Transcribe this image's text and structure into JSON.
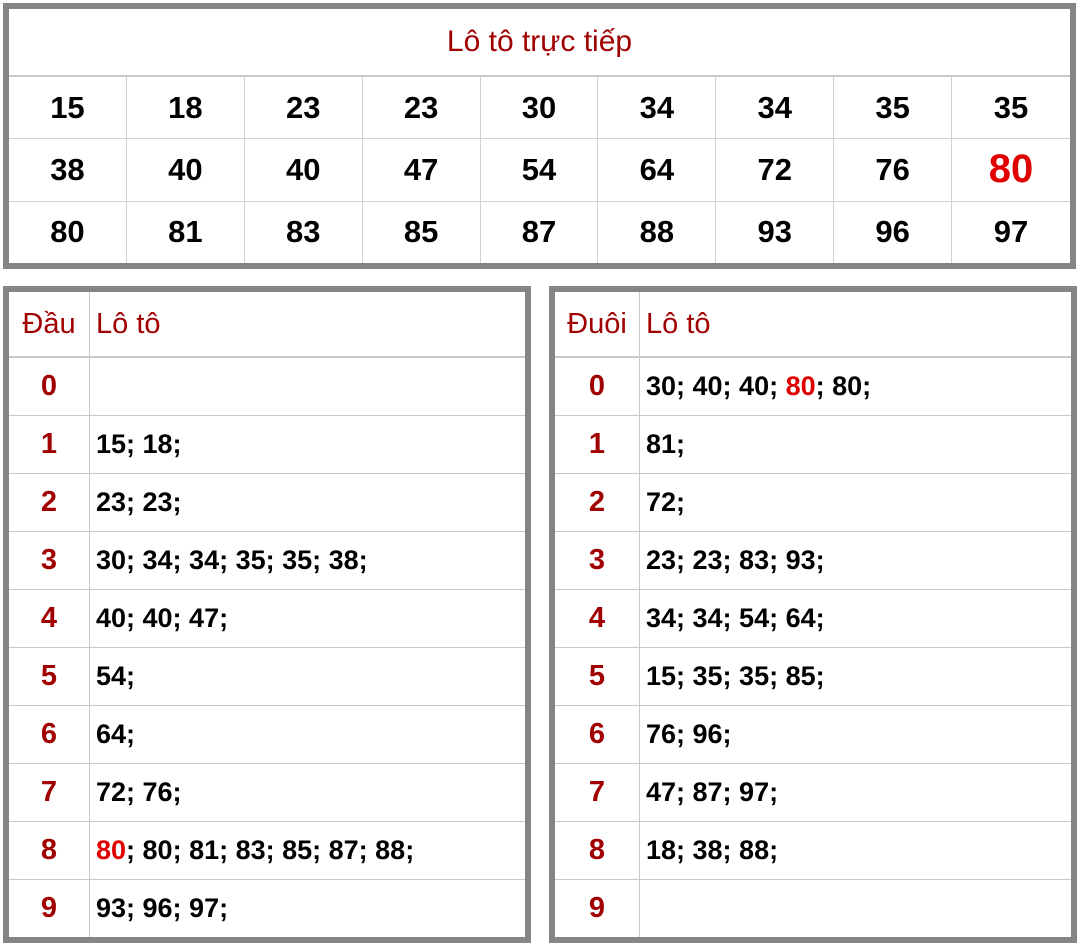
{
  "live": {
    "title": "Lô tô trực tiếp",
    "rows": [
      [
        "15",
        "18",
        "23",
        "23",
        "30",
        "34",
        "34",
        "35",
        "35"
      ],
      [
        "38",
        "40",
        "40",
        "47",
        "54",
        "64",
        "72",
        "76",
        "80"
      ],
      [
        "80",
        "81",
        "83",
        "85",
        "87",
        "88",
        "93",
        "96",
        "97"
      ]
    ],
    "highlight": {
      "row": 1,
      "col": 8
    }
  },
  "head_table": {
    "header": [
      "Đầu",
      "Lô tô"
    ],
    "rows": [
      {
        "key": "0",
        "parts": []
      },
      {
        "key": "1",
        "parts": [
          {
            "text": "15; 18;"
          }
        ]
      },
      {
        "key": "2",
        "parts": [
          {
            "text": "23; 23;"
          }
        ]
      },
      {
        "key": "3",
        "parts": [
          {
            "text": "30; 34; 34; 35; 35; 38;"
          }
        ]
      },
      {
        "key": "4",
        "parts": [
          {
            "text": "40; 40; 47;"
          }
        ]
      },
      {
        "key": "5",
        "parts": [
          {
            "text": "54;"
          }
        ]
      },
      {
        "key": "6",
        "parts": [
          {
            "text": "64;"
          }
        ]
      },
      {
        "key": "7",
        "parts": [
          {
            "text": "72; 76;"
          }
        ]
      },
      {
        "key": "8",
        "parts": [
          {
            "text": "80",
            "hot": true
          },
          {
            "text": "; 80; 81; 83; 85; 87; 88;"
          }
        ]
      },
      {
        "key": "9",
        "parts": [
          {
            "text": "93; 96; 97;"
          }
        ]
      }
    ]
  },
  "tail_table": {
    "header": [
      "Đuôi",
      "Lô tô"
    ],
    "rows": [
      {
        "key": "0",
        "parts": [
          {
            "text": "30; 40; 40; "
          },
          {
            "text": "80",
            "hot": true
          },
          {
            "text": "; 80;"
          }
        ]
      },
      {
        "key": "1",
        "parts": [
          {
            "text": "81;"
          }
        ]
      },
      {
        "key": "2",
        "parts": [
          {
            "text": "72;"
          }
        ]
      },
      {
        "key": "3",
        "parts": [
          {
            "text": "23; 23; 83; 93;"
          }
        ]
      },
      {
        "key": "4",
        "parts": [
          {
            "text": "34; 34; 54; 64;"
          }
        ]
      },
      {
        "key": "5",
        "parts": [
          {
            "text": "15; 35; 35; 85;"
          }
        ]
      },
      {
        "key": "6",
        "parts": [
          {
            "text": "76; 96;"
          }
        ]
      },
      {
        "key": "7",
        "parts": [
          {
            "text": "47; 87; 97;"
          }
        ]
      },
      {
        "key": "8",
        "parts": [
          {
            "text": "18; 38; 88;"
          }
        ]
      },
      {
        "key": "9",
        "parts": []
      }
    ]
  }
}
